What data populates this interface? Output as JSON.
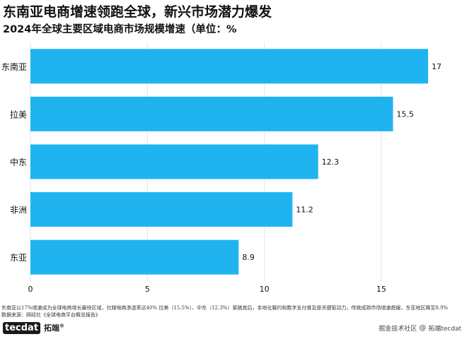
{
  "title": "东南亚电商增速领跑全球，新兴市场潜力爆发",
  "subtitle": "2024年全球主要区域电商市场规模增速（单位：%",
  "note": {
    "line1": "东南亚以17%增速成为全球电商增长最快区域，社媒电商渗透率达40%  拉美（15.5%）、中东（12.3%）紧随其后，本地化履约和数字支付普及是关键驱动力，传统成熟市场增速趋缓，东亚地区降至8.9%",
    "line2": "数据来源：网经社《全球电商平台概览报告》"
  },
  "footer": {
    "logo_text": "tecdat",
    "brand_cn": "拓端",
    "brand_reg": "®",
    "right_prefix": "掘金技术社区",
    "right_brand": "拓端tecdat",
    "at_icon": "at-icon"
  },
  "colors": {
    "bar": "#1fb4f0",
    "grid": "#e3e3e3",
    "text": "#111111"
  },
  "chart_data": {
    "type": "bar",
    "orientation": "horizontal",
    "categories": [
      "东南亚",
      "拉美",
      "中东",
      "非洲",
      "东亚"
    ],
    "values": [
      17,
      15.5,
      12.3,
      11.2,
      8.9
    ],
    "value_labels": [
      "17",
      "15.5",
      "12.3",
      "11.2",
      "8.9"
    ],
    "xticks": [
      0,
      5,
      10,
      15
    ],
    "xlim": [
      0,
      18.3
    ],
    "grid": true,
    "legend": "none"
  }
}
